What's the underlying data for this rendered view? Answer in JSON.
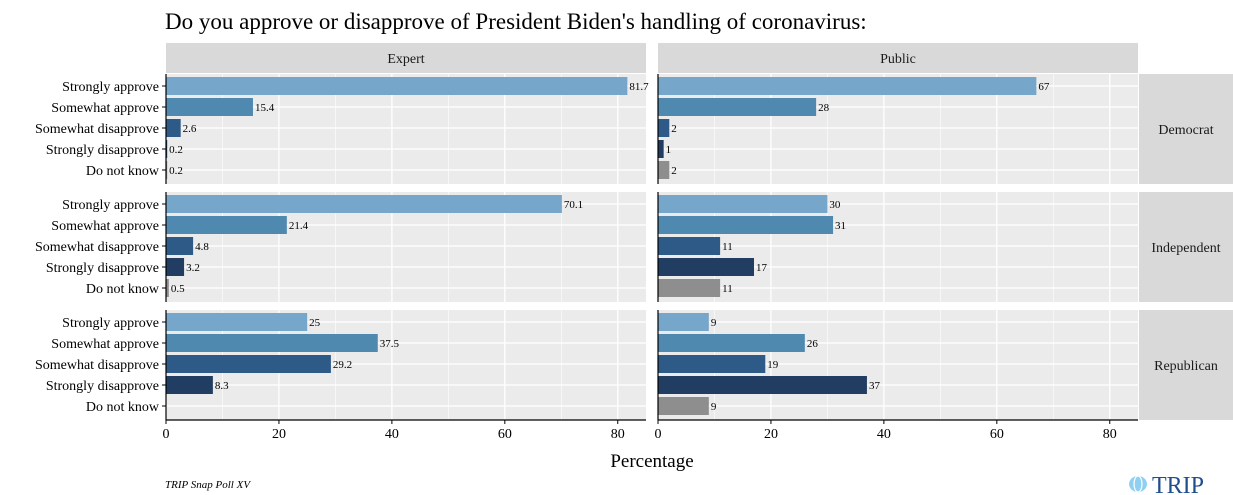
{
  "chart_data": {
    "type": "bar",
    "orientation": "horizontal",
    "title": "Do you approve or disapprove of President Biden's handling of coronavirus:",
    "xlabel": "Percentage",
    "xlim": [
      0,
      85
    ],
    "xticks": [
      0,
      20,
      40,
      60,
      80
    ],
    "grid": true,
    "categories": [
      "Strongly approve",
      "Somewhat approve",
      "Somewhat disapprove",
      "Strongly disapprove",
      "Do not know"
    ],
    "columns": [
      "Expert",
      "Public"
    ],
    "rows": [
      "Democrat",
      "Independent",
      "Republican"
    ],
    "colors": {
      "Strongly approve": "#76a6c9",
      "Somewhat approve": "#5089b0",
      "Somewhat disapprove": "#2e5a87",
      "Strongly disapprove": "#213d62",
      "Do not know": "#8e8e8e"
    },
    "panels": [
      {
        "row": "Democrat",
        "column": "Expert",
        "values": [
          81.7,
          15.4,
          2.6,
          0.2,
          0.2
        ],
        "labels": [
          "81.7",
          "15.4",
          "2.6",
          "0.2",
          "0.2"
        ]
      },
      {
        "row": "Democrat",
        "column": "Public",
        "values": [
          67,
          28,
          2,
          1,
          2
        ],
        "labels": [
          "67",
          "28",
          "2",
          "1",
          "2"
        ]
      },
      {
        "row": "Independent",
        "column": "Expert",
        "values": [
          70.1,
          21.4,
          4.8,
          3.2,
          0.5
        ],
        "labels": [
          "70.1",
          "21.4",
          "4.8",
          "3.2",
          "0.5"
        ]
      },
      {
        "row": "Independent",
        "column": "Public",
        "values": [
          30,
          31,
          11,
          17,
          11
        ],
        "labels": [
          "30",
          "31",
          "11",
          "17",
          "11"
        ]
      },
      {
        "row": "Republican",
        "column": "Expert",
        "values": [
          25,
          37.5,
          29.2,
          8.3,
          null
        ],
        "labels": [
          "25",
          "37.5",
          "29.2",
          "8.3",
          ""
        ]
      },
      {
        "row": "Republican",
        "column": "Public",
        "values": [
          9,
          26,
          19,
          37,
          9
        ],
        "labels": [
          "9",
          "26",
          "19",
          "37",
          "9"
        ]
      }
    ]
  },
  "caption": "TRIP Snap Poll XV",
  "logo": {
    "text": "TRIP",
    "color": "#1f4e8c",
    "accent": "#8fd0f2"
  }
}
